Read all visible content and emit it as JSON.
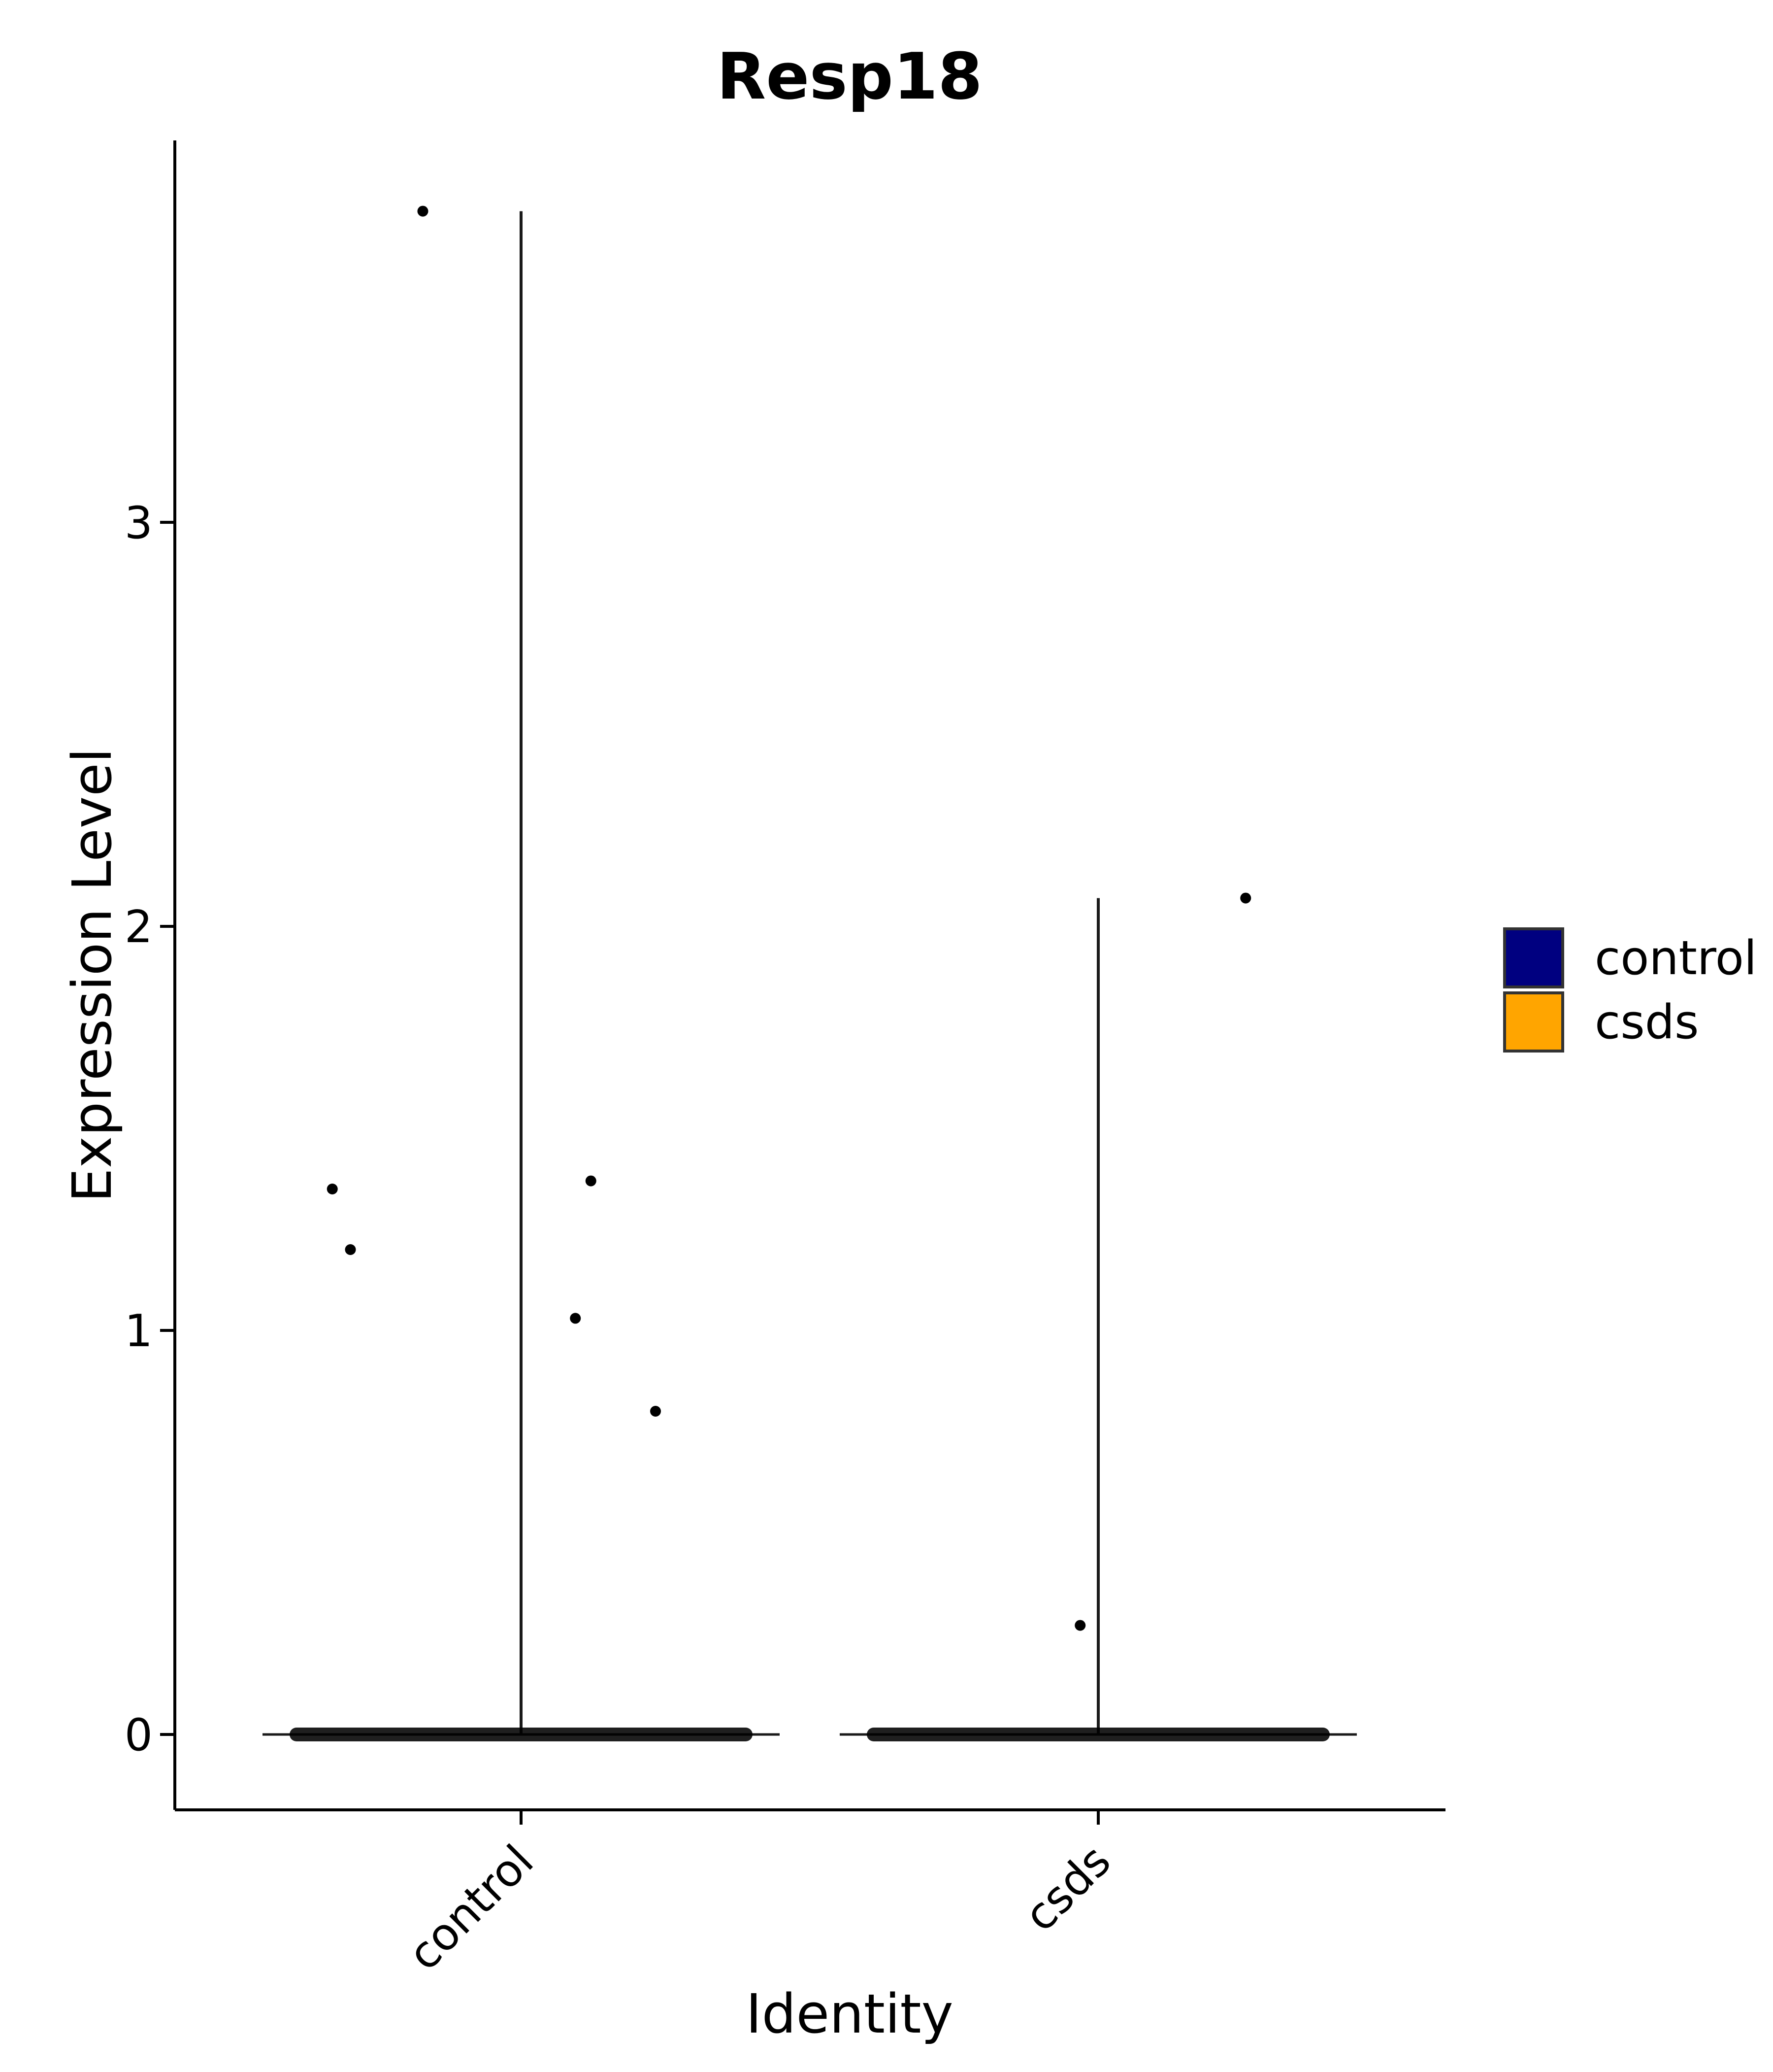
{
  "chart_data": {
    "type": "violin",
    "title": "Resp18",
    "xlabel": "Identity",
    "ylabel": "Expression Level",
    "categories": [
      "control",
      "csds"
    ],
    "ylim": [
      -0.19,
      3.97
    ],
    "yticks": [
      0,
      1,
      2,
      3
    ],
    "grid": false,
    "legend": {
      "placement": "right",
      "entries": [
        {
          "name": "control",
          "color": "#000080"
        },
        {
          "name": "csds",
          "color": "#FFA500"
        }
      ]
    },
    "series": [
      {
        "name": "control",
        "color": "#000080",
        "max": 3.77,
        "outliers": [
          {
            "x_offset": -0.38,
            "y": 3.77
          },
          {
            "x_offset": -0.73,
            "y": 1.35
          },
          {
            "x_offset": -0.66,
            "y": 1.2
          },
          {
            "x_offset": 0.27,
            "y": 1.37
          },
          {
            "x_offset": 0.21,
            "y": 1.03
          },
          {
            "x_offset": 0.52,
            "y": 0.8
          }
        ]
      },
      {
        "name": "csds",
        "color": "#FFA500",
        "max": 2.07,
        "outliers": [
          {
            "x_offset": 0.57,
            "y": 2.07
          },
          {
            "x_offset": -0.07,
            "y": 0.27
          }
        ]
      }
    ]
  }
}
